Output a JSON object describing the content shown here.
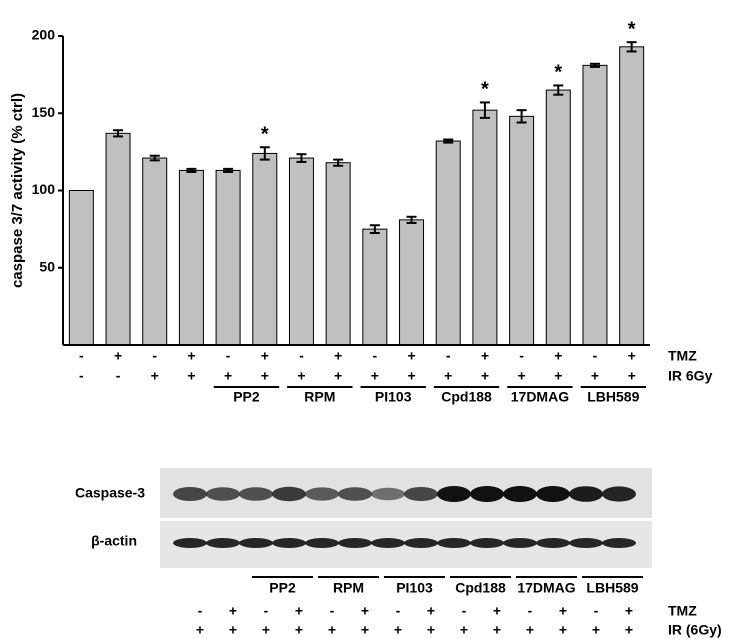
{
  "chart_data": {
    "type": "bar",
    "y_label": "caspase 3/7 activity (% ctrl)",
    "values": [
      100,
      137,
      121,
      113,
      113,
      124,
      121,
      118,
      75,
      81,
      132,
      152,
      148,
      165,
      181,
      193
    ],
    "errors": [
      0,
      2,
      1.5,
      1,
      1,
      4,
      2.5,
      2,
      2.5,
      2,
      1,
      5,
      4,
      3,
      1,
      3
    ],
    "markers": [
      null,
      null,
      null,
      null,
      null,
      "*",
      null,
      null,
      null,
      null,
      null,
      "*",
      null,
      "*",
      null,
      "*"
    ],
    "color": "#c0c0c0",
    "ylim": [
      0,
      200
    ],
    "yticks": [
      50,
      100,
      150,
      200
    ],
    "tmz_label": "TMZ",
    "ir_label": "IR 6Gy",
    "tmz": [
      "-",
      "+",
      "-",
      "+",
      "-",
      "+",
      "-",
      "+",
      "-",
      "+",
      "-",
      "+",
      "-",
      "+",
      "-",
      "+"
    ],
    "ir": [
      "-",
      "-",
      "+",
      "+",
      "+",
      "+",
      "+",
      "+",
      "+",
      "+",
      "+",
      "+",
      "+",
      "+",
      "+",
      "+"
    ],
    "pair_labels": [
      null,
      null,
      "PP2",
      "RPM",
      "PI103",
      "Cpd188",
      "17DMAG",
      "LBH589"
    ]
  },
  "blot": {
    "row_labels": [
      "Caspase-3",
      "β-actin"
    ],
    "pair_labels": [
      null,
      "PP2",
      "RPM",
      "PI103",
      "Cpd188",
      "17DMAG",
      "LBH589"
    ],
    "tmz_label": "TMZ",
    "ir_label": "IR (6Gy)",
    "tmz": [
      "-",
      "+",
      "-",
      "+",
      "-",
      "+",
      "-",
      "+",
      "-",
      "+",
      "-",
      "+",
      "-",
      "+"
    ],
    "ir": [
      "+",
      "+",
      "+",
      "+",
      "+",
      "+",
      "+",
      "+",
      "+",
      "+",
      "+",
      "+",
      "+",
      "+"
    ]
  }
}
